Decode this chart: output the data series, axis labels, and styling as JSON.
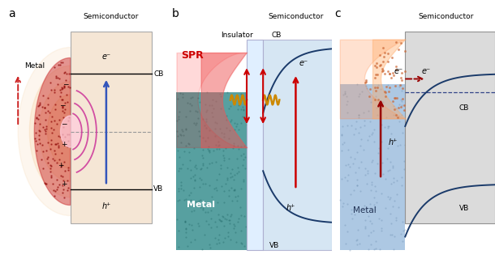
{
  "panel_a": {
    "label": "a",
    "sc_color": "#f5e6d5",
    "sc_edge": "#aaaaaa",
    "metal_color": "#cc3333",
    "glow_color": "#f0b060",
    "arc_color": "#cc3399",
    "blue_arrow": "#3355bb",
    "red_arrow": "#cc2222",
    "fermi_color": "#999999",
    "cb_label": "CB",
    "vb_label": "VB",
    "e_label": "e⁻",
    "h_label": "h⁺",
    "metal_label": "Metal",
    "sc_label": "Semiconductor"
  },
  "panel_b": {
    "label": "b",
    "sc_color": "#cce0f0",
    "insulator_color": "#ddeeff",
    "metal_color": "#3a9090",
    "metal_dot_color": "#1a6060",
    "curve_color": "#1a3a6a",
    "red_color": "#cc0000",
    "wavy_color": "#cc8800",
    "spr_color": "#cc0000",
    "gauss_color": "#dd4444",
    "cb_label": "CB",
    "vb_label": "VB",
    "e_label": "e⁻",
    "h_label": "h⁺",
    "metal_label": "Metal",
    "insulator_label": "Insulator",
    "sc_label": "Semiconductor",
    "spr_label": "SPR"
  },
  "panel_c": {
    "label": "c",
    "sc_color": "#d8d8d8",
    "sc_edge": "#888888",
    "metal_color": "#99bbdd",
    "metal_dot_color": "#6688aa",
    "curve_color": "#1a3a6a",
    "red_color": "#990000",
    "orange_color": "#ff8844",
    "dashed_color": "#334466",
    "cb_label": "CB",
    "vb_label": "VB",
    "e_label": "e⁻",
    "h_label": "h⁺",
    "metal_label": "Metal",
    "sc_label": "Semiconductor"
  }
}
